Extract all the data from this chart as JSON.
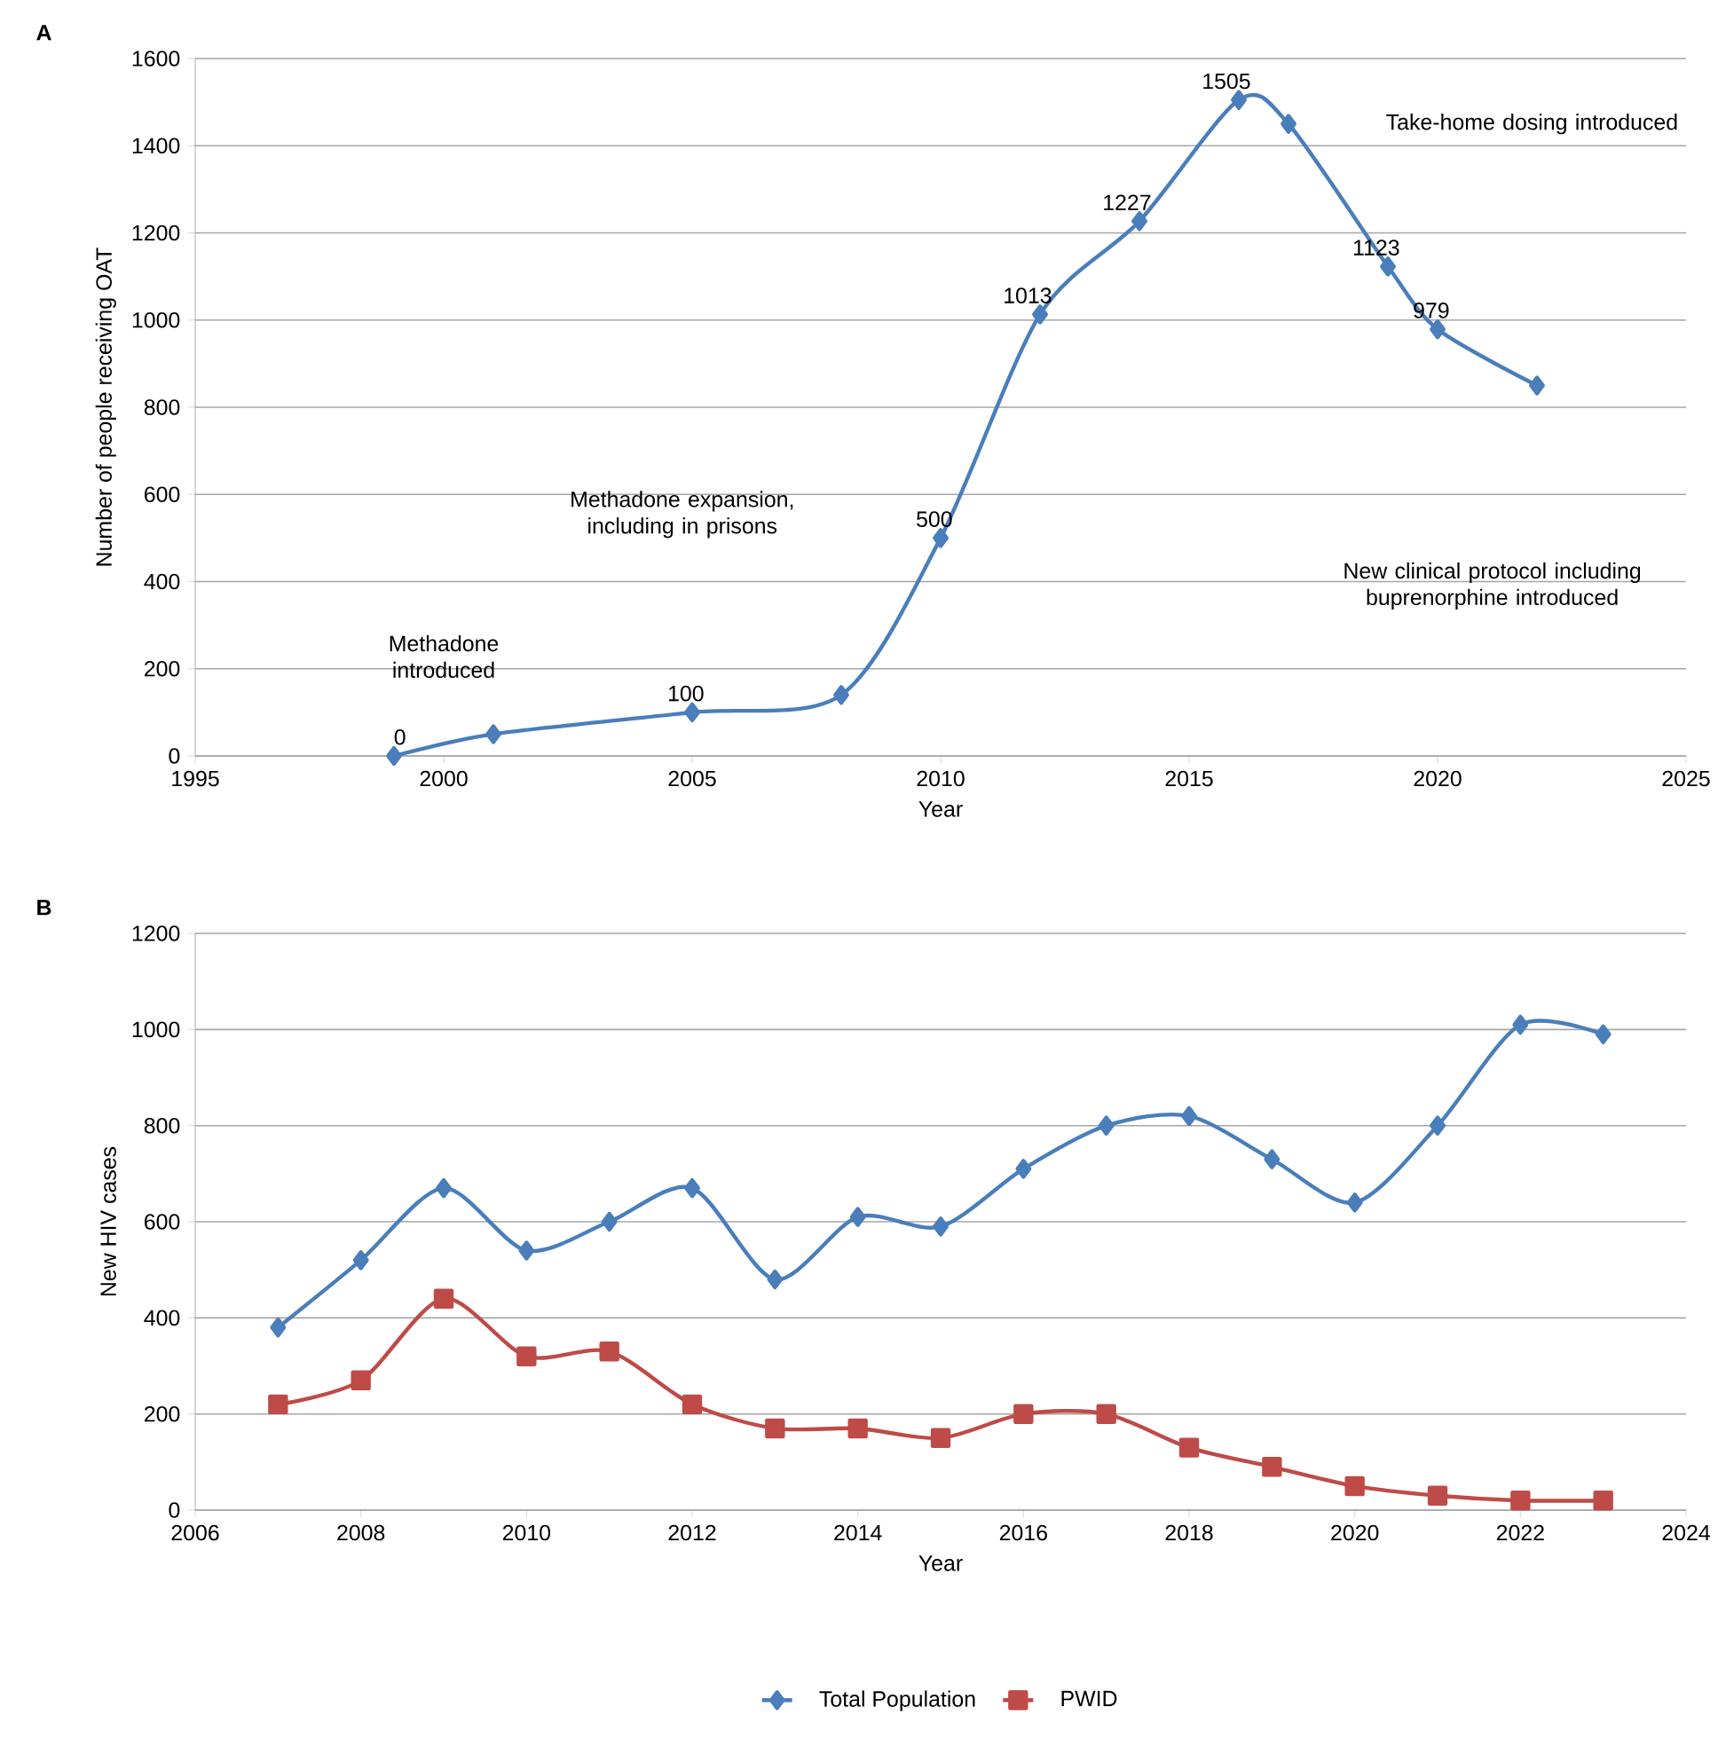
{
  "chart_data": [
    {
      "type": "line",
      "title": "A",
      "xlabel": "Year",
      "ylabel": "Number of people receiving OAT",
      "xlim": [
        1995,
        2025
      ],
      "ylim": [
        0,
        1600
      ],
      "xticks": [
        1995,
        2000,
        2005,
        2010,
        2015,
        2020,
        2025
      ],
      "yticks": [
        0,
        200,
        400,
        600,
        800,
        1000,
        1200,
        1400,
        1600
      ],
      "grid": "y",
      "series": [
        {
          "color": "#4a7ebb",
          "marker": "diamond",
          "x": [
            1999,
            2001,
            2005,
            2008,
            2010,
            2012,
            2014,
            2016,
            2017,
            2019,
            2020,
            2022
          ],
          "values": [
            0,
            50,
            100,
            140,
            500,
            1013,
            1227,
            1505,
            1450,
            1123,
            979,
            850
          ],
          "value_labels": [
            "0",
            null,
            "100",
            null,
            "500",
            "1013",
            "1227",
            "1505",
            null,
            "1123",
            "979",
            null
          ]
        }
      ],
      "annotations": [
        "Methadone introduced",
        "Methadone expansion, including in prisons",
        "Take-home dosing introduced",
        "New clinical protocol including buprenorphine introduced"
      ]
    },
    {
      "type": "line",
      "title": "B",
      "xlabel": "Year",
      "ylabel": "New HIV cases",
      "xlim": [
        2006,
        2024
      ],
      "ylim": [
        0,
        1200
      ],
      "xticks": [
        2006,
        2008,
        2010,
        2012,
        2014,
        2016,
        2018,
        2020,
        2022,
        2024
      ],
      "yticks": [
        0,
        200,
        400,
        600,
        800,
        1000,
        1200
      ],
      "grid": "y",
      "legend": "bottom",
      "series": [
        {
          "name": "Total Population",
          "color": "#4a7ebb",
          "marker": "diamond",
          "x": [
            2007,
            2008,
            2009,
            2010,
            2011,
            2012,
            2013,
            2014,
            2015,
            2016,
            2017,
            2018,
            2019,
            2020,
            2021,
            2022,
            2023
          ],
          "values": [
            380,
            520,
            670,
            540,
            600,
            670,
            480,
            610,
            590,
            710,
            800,
            820,
            730,
            640,
            800,
            1010,
            990
          ]
        },
        {
          "name": "PWID",
          "color": "#be4b48",
          "marker": "square",
          "x": [
            2007,
            2008,
            2009,
            2010,
            2011,
            2012,
            2013,
            2014,
            2015,
            2016,
            2017,
            2018,
            2019,
            2020,
            2021,
            2022,
            2023
          ],
          "values": [
            220,
            270,
            440,
            320,
            330,
            220,
            170,
            170,
            150,
            200,
            200,
            130,
            90,
            50,
            30,
            20,
            20
          ]
        }
      ]
    }
  ]
}
